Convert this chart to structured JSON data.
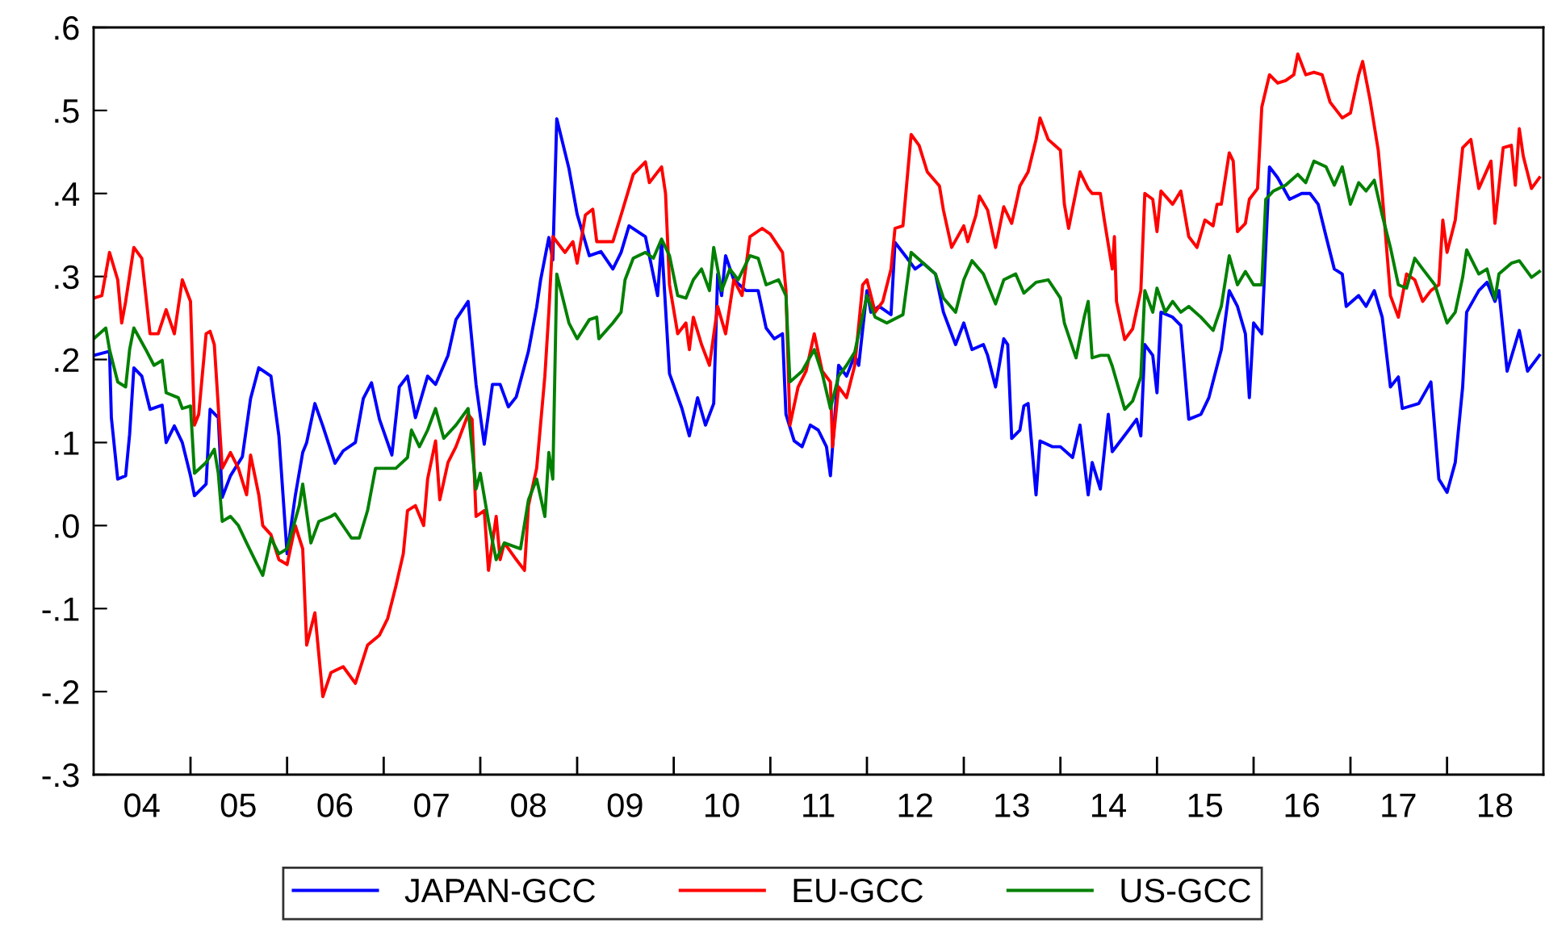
{
  "chart_data": {
    "type": "line",
    "xlim": [
      "2004-01-01",
      "2018-12-31"
    ],
    "ylim": [
      -0.3,
      0.6
    ],
    "xticks": [
      {
        "value": "2004-07-01",
        "label": "04"
      },
      {
        "value": "2005-07-01",
        "label": "05"
      },
      {
        "value": "2006-07-01",
        "label": "06"
      },
      {
        "value": "2007-07-01",
        "label": "07"
      },
      {
        "value": "2008-07-01",
        "label": "08"
      },
      {
        "value": "2009-07-01",
        "label": "09"
      },
      {
        "value": "2010-07-01",
        "label": "10"
      },
      {
        "value": "2011-07-01",
        "label": "11"
      },
      {
        "value": "2012-07-01",
        "label": "12"
      },
      {
        "value": "2013-07-01",
        "label": "13"
      },
      {
        "value": "2014-07-01",
        "label": "14"
      },
      {
        "value": "2015-07-01",
        "label": "15"
      },
      {
        "value": "2016-07-01",
        "label": "16"
      },
      {
        "value": "2017-07-01",
        "label": "17"
      },
      {
        "value": "2018-07-01",
        "label": "18"
      },
      {
        "value": "2005-01-01",
        "label": null
      },
      {
        "value": "2006-01-01",
        "label": null
      },
      {
        "value": "2007-01-01",
        "label": null
      },
      {
        "value": "2008-01-01",
        "label": null
      },
      {
        "value": "2009-01-01",
        "label": null
      },
      {
        "value": "2010-01-01",
        "label": null
      },
      {
        "value": "2011-01-01",
        "label": null
      },
      {
        "value": "2012-01-01",
        "label": null
      },
      {
        "value": "2013-01-01",
        "label": null
      },
      {
        "value": "2014-01-01",
        "label": null
      },
      {
        "value": "2015-01-01",
        "label": null
      },
      {
        "value": "2016-01-01",
        "label": null
      },
      {
        "value": "2017-01-01",
        "label": null
      },
      {
        "value": "2018-01-01",
        "label": null
      }
    ],
    "yticks": [
      {
        "value": -0.3,
        "label": "-.3"
      },
      {
        "value": -0.2,
        "label": "-.2"
      },
      {
        "value": -0.1,
        "label": "-.1"
      },
      {
        "value": 0.0,
        "label": ".0"
      },
      {
        "value": 0.1,
        "label": ".1"
      },
      {
        "value": 0.2,
        "label": ".2"
      },
      {
        "value": 0.3,
        "label": ".3"
      },
      {
        "value": 0.4,
        "label": ".4"
      },
      {
        "value": 0.5,
        "label": ".5"
      },
      {
        "value": 0.6,
        "label": ".6"
      }
    ],
    "grid": false,
    "legend": "bottom",
    "marker": "none",
    "line_style": "solid",
    "series": [
      {
        "name": "JAPAN-GCC",
        "color": "#0000ff",
        "x": [
          "2004-01-01",
          "2004-03-01",
          "2004-03-08",
          "2004-04-01",
          "2004-05-01",
          "2004-05-16",
          "2004-06-01",
          "2004-07-01",
          "2004-08-01",
          "2004-09-16",
          "2004-10-01",
          "2004-11-01",
          "2004-12-01",
          "2005-01-01",
          "2005-01-16",
          "2005-03-01",
          "2005-03-16",
          "2005-04-16",
          "2005-05-01",
          "2005-06-01",
          "2005-07-16",
          "2005-08-16",
          "2005-09-16",
          "2005-11-01",
          "2005-12-01",
          "2006-01-01",
          "2006-02-01",
          "2006-03-01",
          "2006-03-16",
          "2006-04-16",
          "2006-05-16",
          "2006-07-01",
          "2006-08-01",
          "2006-09-16",
          "2006-10-16",
          "2006-11-16",
          "2006-12-16",
          "2007-02-01",
          "2007-03-01",
          "2007-04-01",
          "2007-05-01",
          "2007-06-16",
          "2007-07-16",
          "2007-09-01",
          "2007-10-01",
          "2007-11-16",
          "2007-12-16",
          "2008-01-16",
          "2008-02-16",
          "2008-03-16",
          "2008-04-16",
          "2008-05-16",
          "2008-07-01",
          "2008-08-01",
          "2008-08-16",
          "2008-09-16",
          "2008-10-01",
          "2008-10-16",
          "2008-12-01",
          "2009-01-01",
          "2009-02-16",
          "2009-04-01",
          "2009-05-16",
          "2009-06-16",
          "2009-07-16",
          "2009-09-16",
          "2009-11-01",
          "2009-11-16",
          "2009-12-16",
          "2010-02-01",
          "2010-03-01",
          "2010-04-01",
          "2010-05-01",
          "2010-06-01",
          "2010-06-16",
          "2010-07-01",
          "2010-07-16",
          "2010-08-16",
          "2010-10-01",
          "2010-11-16",
          "2010-12-16",
          "2011-01-16",
          "2011-02-16",
          "2011-03-01",
          "2011-04-01",
          "2011-05-01",
          "2011-06-01",
          "2011-07-01",
          "2011-08-01",
          "2011-08-16",
          "2011-09-16",
          "2011-10-16",
          "2011-11-16",
          "2011-12-01",
          "2012-01-01",
          "2012-01-16",
          "2012-02-16",
          "2012-04-01",
          "2012-04-16",
          "2012-06-01",
          "2012-07-01",
          "2012-08-01",
          "2012-09-16",
          "2012-10-16",
          "2012-12-01",
          "2013-01-01",
          "2013-02-01",
          "2013-03-16",
          "2013-04-01",
          "2013-05-01",
          "2013-06-01",
          "2013-06-16",
          "2013-07-01",
          "2013-08-01",
          "2013-08-16",
          "2013-09-01",
          "2013-10-01",
          "2013-10-16",
          "2013-12-01",
          "2014-01-01",
          "2014-02-16",
          "2014-03-16",
          "2014-04-16",
          "2014-05-01",
          "2014-06-01",
          "2014-07-01",
          "2014-07-16",
          "2014-09-16",
          "2014-10-16",
          "2014-11-01",
          "2014-11-16",
          "2014-12-16",
          "2015-01-01",
          "2015-01-16",
          "2015-03-01",
          "2015-04-01",
          "2015-05-01",
          "2015-06-16",
          "2015-07-16",
          "2015-09-01",
          "2015-10-01",
          "2015-11-01",
          "2015-12-01",
          "2015-12-16",
          "2016-01-01",
          "2016-02-01",
          "2016-03-01",
          "2016-04-01",
          "2016-05-16",
          "2016-07-01",
          "2016-08-01",
          "2016-09-01",
          "2016-10-01",
          "2016-11-01",
          "2016-12-01",
          "2016-12-16",
          "2017-02-01",
          "2017-03-01",
          "2017-04-01",
          "2017-05-01",
          "2017-06-01",
          "2017-07-01",
          "2017-07-16",
          "2017-09-16",
          "2017-11-01",
          "2017-12-01",
          "2018-01-01",
          "2018-02-01",
          "2018-03-01",
          "2018-03-16",
          "2018-05-01",
          "2018-06-01",
          "2018-07-01",
          "2018-07-16",
          "2018-08-16",
          "2018-10-01",
          "2018-11-01",
          "2018-12-16"
        ],
        "values": [
          0.205,
          0.21,
          0.13,
          0.056,
          0.06,
          0.11,
          0.19,
          0.18,
          0.14,
          0.145,
          0.1,
          0.12,
          0.1,
          0.06,
          0.036,
          0.05,
          0.14,
          0.13,
          0.034,
          0.06,
          0.083,
          0.153,
          0.19,
          0.18,
          0.108,
          -0.034,
          0.036,
          0.088,
          0.1,
          0.147,
          0.12,
          0.075,
          0.09,
          0.1,
          0.153,
          0.172,
          0.128,
          0.085,
          0.167,
          0.18,
          0.13,
          0.18,
          0.17,
          0.205,
          0.248,
          0.27,
          0.17,
          0.098,
          0.17,
          0.17,
          0.143,
          0.155,
          0.21,
          0.263,
          0.296,
          0.347,
          0.32,
          0.49,
          0.43,
          0.375,
          0.325,
          0.33,
          0.309,
          0.329,
          0.361,
          0.348,
          0.277,
          0.342,
          0.183,
          0.141,
          0.108,
          0.154,
          0.121,
          0.147,
          0.303,
          0.277,
          0.325,
          0.296,
          0.283,
          0.283,
          0.238,
          0.225,
          0.231,
          0.134,
          0.102,
          0.095,
          0.121,
          0.115,
          0.095,
          0.06,
          0.193,
          0.18,
          0.205,
          0.193,
          0.283,
          0.257,
          0.264,
          0.254,
          0.341,
          0.322,
          0.309,
          0.316,
          0.303,
          0.257,
          0.218,
          0.244,
          0.212,
          0.218,
          0.205,
          0.167,
          0.225,
          0.218,
          0.105,
          0.115,
          0.144,
          0.147,
          0.037,
          0.102,
          0.095,
          0.095,
          0.082,
          0.121,
          0.037,
          0.076,
          0.044,
          0.134,
          0.089,
          0.115,
          0.128,
          0.108,
          0.218,
          0.205,
          0.16,
          0.257,
          0.251,
          0.241,
          0.128,
          0.134,
          0.154,
          0.212,
          0.283,
          0.264,
          0.231,
          0.154,
          0.244,
          0.231,
          0.432,
          0.419,
          0.393,
          0.4,
          0.4,
          0.387,
          0.348,
          0.309,
          0.303,
          0.264,
          0.277,
          0.264,
          0.283,
          0.251,
          0.167,
          0.179,
          0.141,
          0.147,
          0.173,
          0.056,
          0.04,
          0.076,
          0.167,
          0.257,
          0.283,
          0.293,
          0.27,
          0.283,
          0.186,
          0.235,
          0.186,
          0.205
        ]
      },
      {
        "name": "EU-GCC",
        "color": "#ff0000",
        "x": [
          "2004-01-01",
          "2004-02-01",
          "2004-03-01",
          "2004-04-01",
          "2004-04-16",
          "2004-05-01",
          "2004-06-01",
          "2004-07-01",
          "2004-08-01",
          "2004-09-01",
          "2004-10-01",
          "2004-11-01",
          "2004-12-01",
          "2005-01-01",
          "2005-01-16",
          "2005-02-01",
          "2005-03-01",
          "2005-03-16",
          "2005-04-01",
          "2005-05-01",
          "2005-06-01",
          "2005-07-01",
          "2005-08-01",
          "2005-08-16",
          "2005-09-16",
          "2005-10-01",
          "2005-11-01",
          "2005-12-01",
          "2006-01-01",
          "2006-02-01",
          "2006-03-01",
          "2006-03-16",
          "2006-04-16",
          "2006-05-16",
          "2006-06-16",
          "2006-08-01",
          "2006-09-16",
          "2006-11-01",
          "2006-12-16",
          "2007-01-16",
          "2007-02-16",
          "2007-03-16",
          "2007-04-01",
          "2007-05-01",
          "2007-06-01",
          "2007-06-16",
          "2007-07-16",
          "2007-08-01",
          "2007-09-01",
          "2007-10-01",
          "2007-11-16",
          "2007-12-01",
          "2007-12-16",
          "2008-01-16",
          "2008-02-01",
          "2008-03-01",
          "2008-03-16",
          "2008-04-01",
          "2008-05-16",
          "2008-06-16",
          "2008-07-01",
          "2008-08-01",
          "2008-09-01",
          "2008-09-16",
          "2008-10-01",
          "2008-11-16",
          "2008-12-16",
          "2009-01-01",
          "2009-02-01",
          "2009-03-01",
          "2009-03-16",
          "2009-05-16",
          "2009-06-16",
          "2009-08-01",
          "2009-09-16",
          "2009-10-01",
          "2009-11-16",
          "2009-12-01",
          "2009-12-16",
          "2010-01-16",
          "2010-02-16",
          "2010-03-01",
          "2010-03-16",
          "2010-04-16",
          "2010-05-16",
          "2010-06-16",
          "2010-07-16",
          "2010-08-16",
          "2010-09-16",
          "2010-10-16",
          "2010-12-01",
          "2011-01-01",
          "2011-02-16",
          "2011-03-01",
          "2011-03-16",
          "2011-04-16",
          "2011-05-16",
          "2011-06-16",
          "2011-07-16",
          "2011-08-16",
          "2011-08-24",
          "2011-09-16",
          "2011-10-16",
          "2011-11-16",
          "2011-12-16",
          "2012-01-01",
          "2012-02-01",
          "2012-03-01",
          "2012-04-01",
          "2012-04-16",
          "2012-05-16",
          "2012-06-16",
          "2012-07-16",
          "2012-08-16",
          "2012-10-01",
          "2012-10-16",
          "2012-11-16",
          "2013-01-01",
          "2013-01-16",
          "2013-02-16",
          "2013-03-01",
          "2013-04-01",
          "2013-05-01",
          "2013-06-01",
          "2013-07-01",
          "2013-08-01",
          "2013-09-01",
          "2013-10-01",
          "2013-10-16",
          "2013-11-16",
          "2014-01-01",
          "2014-01-16",
          "2014-02-01",
          "2014-03-16",
          "2014-04-16",
          "2014-05-01",
          "2014-06-01",
          "2014-06-16",
          "2014-07-16",
          "2014-07-24",
          "2014-08-01",
          "2014-09-01",
          "2014-10-01",
          "2014-11-01",
          "2014-11-16",
          "2014-12-16",
          "2015-01-01",
          "2015-01-16",
          "2015-03-01",
          "2015-04-01",
          "2015-05-01",
          "2015-06-01",
          "2015-07-01",
          "2015-08-01",
          "2015-08-16",
          "2015-09-01",
          "2015-10-01",
          "2015-10-16",
          "2015-11-01",
          "2015-12-01",
          "2015-12-16",
          "2016-01-16",
          "2016-02-01",
          "2016-03-01",
          "2016-04-01",
          "2016-05-01",
          "2016-06-01",
          "2016-06-16",
          "2016-07-16",
          "2016-08-16",
          "2016-09-16",
          "2016-10-16",
          "2016-12-01",
          "2017-01-01",
          "2017-02-01",
          "2017-02-16",
          "2017-03-16",
          "2017-04-16",
          "2017-05-01",
          "2017-06-01",
          "2017-07-01",
          "2017-08-01",
          "2017-09-01",
          "2017-10-01",
          "2017-11-01",
          "2017-12-01",
          "2017-12-16",
          "2018-01-01",
          "2018-02-01",
          "2018-03-01",
          "2018-04-01",
          "2018-05-01",
          "2018-06-16",
          "2018-07-01",
          "2018-08-01",
          "2018-09-01",
          "2018-09-16",
          "2018-10-01",
          "2018-10-16",
          "2018-11-16",
          "2018-12-16"
        ],
        "values": [
          0.274,
          0.277,
          0.329,
          0.296,
          0.244,
          0.27,
          0.335,
          0.322,
          0.231,
          0.231,
          0.26,
          0.231,
          0.296,
          0.27,
          0.121,
          0.134,
          0.231,
          0.234,
          0.218,
          0.069,
          0.088,
          0.069,
          0.037,
          0.085,
          0.037,
          0.0,
          -0.011,
          -0.041,
          -0.047,
          0.0,
          -0.028,
          -0.144,
          -0.105,
          -0.206,
          -0.177,
          -0.17,
          -0.19,
          -0.144,
          -0.132,
          -0.112,
          -0.073,
          -0.034,
          0.018,
          0.024,
          0.0,
          0.056,
          0.102,
          0.031,
          0.076,
          0.095,
          0.134,
          0.128,
          0.011,
          0.018,
          -0.054,
          0.011,
          -0.041,
          -0.021,
          -0.041,
          -0.054,
          0.024,
          0.069,
          0.18,
          0.257,
          0.348,
          0.329,
          0.342,
          0.316,
          0.374,
          0.381,
          0.342,
          0.342,
          0.374,
          0.423,
          0.438,
          0.413,
          0.432,
          0.4,
          0.29,
          0.231,
          0.244,
          0.212,
          0.251,
          0.218,
          0.193,
          0.264,
          0.231,
          0.296,
          0.277,
          0.348,
          0.358,
          0.351,
          0.329,
          0.283,
          0.121,
          0.167,
          0.186,
          0.231,
          0.186,
          0.173,
          0.095,
          0.167,
          0.154,
          0.193,
          0.29,
          0.296,
          0.257,
          0.27,
          0.309,
          0.358,
          0.361,
          0.471,
          0.458,
          0.426,
          0.409,
          0.38,
          0.335,
          0.361,
          0.342,
          0.374,
          0.397,
          0.38,
          0.335,
          0.384,
          0.364,
          0.409,
          0.426,
          0.465,
          0.491,
          0.465,
          0.452,
          0.387,
          0.358,
          0.426,
          0.406,
          0.4,
          0.4,
          0.368,
          0.309,
          0.348,
          0.27,
          0.224,
          0.237,
          0.283,
          0.4,
          0.393,
          0.354,
          0.403,
          0.387,
          0.403,
          0.348,
          0.335,
          0.368,
          0.361,
          0.387,
          0.387,
          0.449,
          0.439,
          0.354,
          0.364,
          0.393,
          0.406,
          0.504,
          0.543,
          0.533,
          0.536,
          0.543,
          0.568,
          0.543,
          0.546,
          0.543,
          0.51,
          0.491,
          0.497,
          0.543,
          0.559,
          0.513,
          0.452,
          0.4,
          0.277,
          0.251,
          0.303,
          0.296,
          0.27,
          0.283,
          0.29,
          0.368,
          0.329,
          0.368,
          0.455,
          0.465,
          0.406,
          0.439,
          0.364,
          0.455,
          0.458,
          0.41,
          0.478,
          0.445,
          0.406,
          0.419
        ]
      },
      {
        "name": "US-GCC",
        "color": "#008000",
        "x": [
          "2004-01-01",
          "2004-02-16",
          "2004-03-01",
          "2004-04-01",
          "2004-05-01",
          "2004-05-16",
          "2004-06-01",
          "2004-07-16",
          "2004-08-16",
          "2004-09-16",
          "2004-10-01",
          "2004-11-16",
          "2004-12-01",
          "2005-01-01",
          "2005-01-16",
          "2005-03-01",
          "2005-04-01",
          "2005-04-16",
          "2005-05-01",
          "2005-06-01",
          "2005-07-01",
          "2005-08-01",
          "2005-09-01",
          "2005-10-01",
          "2005-11-01",
          "2005-12-01",
          "2006-01-01",
          "2006-02-16",
          "2006-03-01",
          "2006-04-01",
          "2006-05-01",
          "2006-06-16",
          "2006-07-01",
          "2006-09-01",
          "2006-10-01",
          "2006-11-01",
          "2006-12-01",
          "2007-01-01",
          "2007-02-16",
          "2007-04-01",
          "2007-04-16",
          "2007-05-16",
          "2007-06-16",
          "2007-07-16",
          "2007-08-16",
          "2007-10-01",
          "2007-11-16",
          "2007-12-16",
          "2008-01-01",
          "2008-02-01",
          "2008-03-01",
          "2008-04-01",
          "2008-06-01",
          "2008-07-01",
          "2008-08-01",
          "2008-09-01",
          "2008-09-16",
          "2008-10-01",
          "2008-10-16",
          "2008-12-01",
          "2009-01-01",
          "2009-02-16",
          "2009-03-16",
          "2009-03-24",
          "2009-05-16",
          "2009-06-16",
          "2009-07-01",
          "2009-08-01",
          "2009-09-16",
          "2009-10-16",
          "2009-11-16",
          "2009-12-16",
          "2010-01-16",
          "2010-02-16",
          "2010-03-16",
          "2010-04-16",
          "2010-05-16",
          "2010-06-01",
          "2010-07-01",
          "2010-08-01",
          "2010-09-01",
          "2010-10-16",
          "2010-11-16",
          "2010-12-16",
          "2011-02-01",
          "2011-03-01",
          "2011-03-16",
          "2011-05-01",
          "2011-06-16",
          "2011-07-16",
          "2011-08-16",
          "2011-09-16",
          "2011-10-16",
          "2011-11-16",
          "2012-01-01",
          "2012-02-01",
          "2012-03-16",
          "2012-05-16",
          "2012-06-16",
          "2012-08-01",
          "2012-09-16",
          "2012-10-16",
          "2012-12-01",
          "2013-01-01",
          "2013-02-01",
          "2013-03-16",
          "2013-05-01",
          "2013-06-01",
          "2013-07-16",
          "2013-08-16",
          "2013-10-01",
          "2013-11-16",
          "2014-01-01",
          "2014-01-16",
          "2014-03-01",
          "2014-04-01",
          "2014-04-16",
          "2014-05-01",
          "2014-06-01",
          "2014-07-01",
          "2014-07-16",
          "2014-09-01",
          "2014-10-01",
          "2014-11-01",
          "2014-11-16",
          "2014-12-16",
          "2015-01-01",
          "2015-02-01",
          "2015-03-01",
          "2015-04-01",
          "2015-05-01",
          "2015-06-16",
          "2015-08-01",
          "2015-09-01",
          "2015-10-01",
          "2015-11-01",
          "2015-12-01",
          "2016-01-01",
          "2016-02-01",
          "2016-02-16",
          "2016-03-16",
          "2016-05-01",
          "2016-06-16",
          "2016-07-16",
          "2016-08-16",
          "2016-10-01",
          "2016-11-01",
          "2016-12-01",
          "2017-01-01",
          "2017-02-01",
          "2017-03-01",
          "2017-04-01",
          "2017-05-01",
          "2017-06-01",
          "2017-07-01",
          "2017-08-01",
          "2017-09-01",
          "2017-10-01",
          "2017-11-16",
          "2018-01-01",
          "2018-02-01",
          "2018-03-01",
          "2018-03-16",
          "2018-05-01",
          "2018-06-01",
          "2018-07-01",
          "2018-07-16",
          "2018-09-01",
          "2018-10-01",
          "2018-11-16",
          "2018-12-16"
        ],
        "values": [
          0.225,
          0.238,
          0.212,
          0.173,
          0.167,
          0.212,
          0.238,
          0.212,
          0.193,
          0.199,
          0.16,
          0.154,
          0.141,
          0.144,
          0.063,
          0.076,
          0.092,
          0.063,
          0.005,
          0.011,
          0.0,
          -0.021,
          -0.041,
          -0.06,
          -0.015,
          -0.034,
          -0.028,
          0.024,
          0.05,
          -0.021,
          0.005,
          0.011,
          0.014,
          -0.015,
          -0.015,
          0.018,
          0.069,
          0.069,
          0.069,
          0.082,
          0.115,
          0.095,
          0.115,
          0.141,
          0.105,
          0.121,
          0.141,
          0.044,
          0.063,
          0.005,
          -0.041,
          -0.021,
          -0.028,
          0.031,
          0.056,
          0.011,
          0.088,
          0.056,
          0.303,
          0.244,
          0.225,
          0.248,
          0.251,
          0.225,
          0.244,
          0.257,
          0.296,
          0.322,
          0.329,
          0.322,
          0.345,
          0.325,
          0.277,
          0.274,
          0.296,
          0.309,
          0.283,
          0.335,
          0.283,
          0.309,
          0.296,
          0.325,
          0.322,
          0.29,
          0.296,
          0.277,
          0.173,
          0.186,
          0.212,
          0.183,
          0.141,
          0.18,
          0.193,
          0.209,
          0.277,
          0.251,
          0.244,
          0.254,
          0.329,
          0.316,
          0.303,
          0.274,
          0.257,
          0.296,
          0.319,
          0.303,
          0.267,
          0.296,
          0.303,
          0.28,
          0.293,
          0.296,
          0.274,
          0.244,
          0.202,
          0.251,
          0.27,
          0.202,
          0.205,
          0.205,
          0.192,
          0.14,
          0.15,
          0.179,
          0.283,
          0.257,
          0.286,
          0.257,
          0.27,
          0.257,
          0.264,
          0.251,
          0.235,
          0.264,
          0.325,
          0.29,
          0.306,
          0.29,
          0.29,
          0.393,
          0.403,
          0.41,
          0.423,
          0.413,
          0.439,
          0.432,
          0.41,
          0.432,
          0.387,
          0.413,
          0.403,
          0.416,
          0.374,
          0.335,
          0.29,
          0.286,
          0.322,
          0.309,
          0.29,
          0.244,
          0.257,
          0.299,
          0.332,
          0.303,
          0.309,
          0.273,
          0.303,
          0.316,
          0.319,
          0.299,
          0.306
        ]
      }
    ]
  }
}
